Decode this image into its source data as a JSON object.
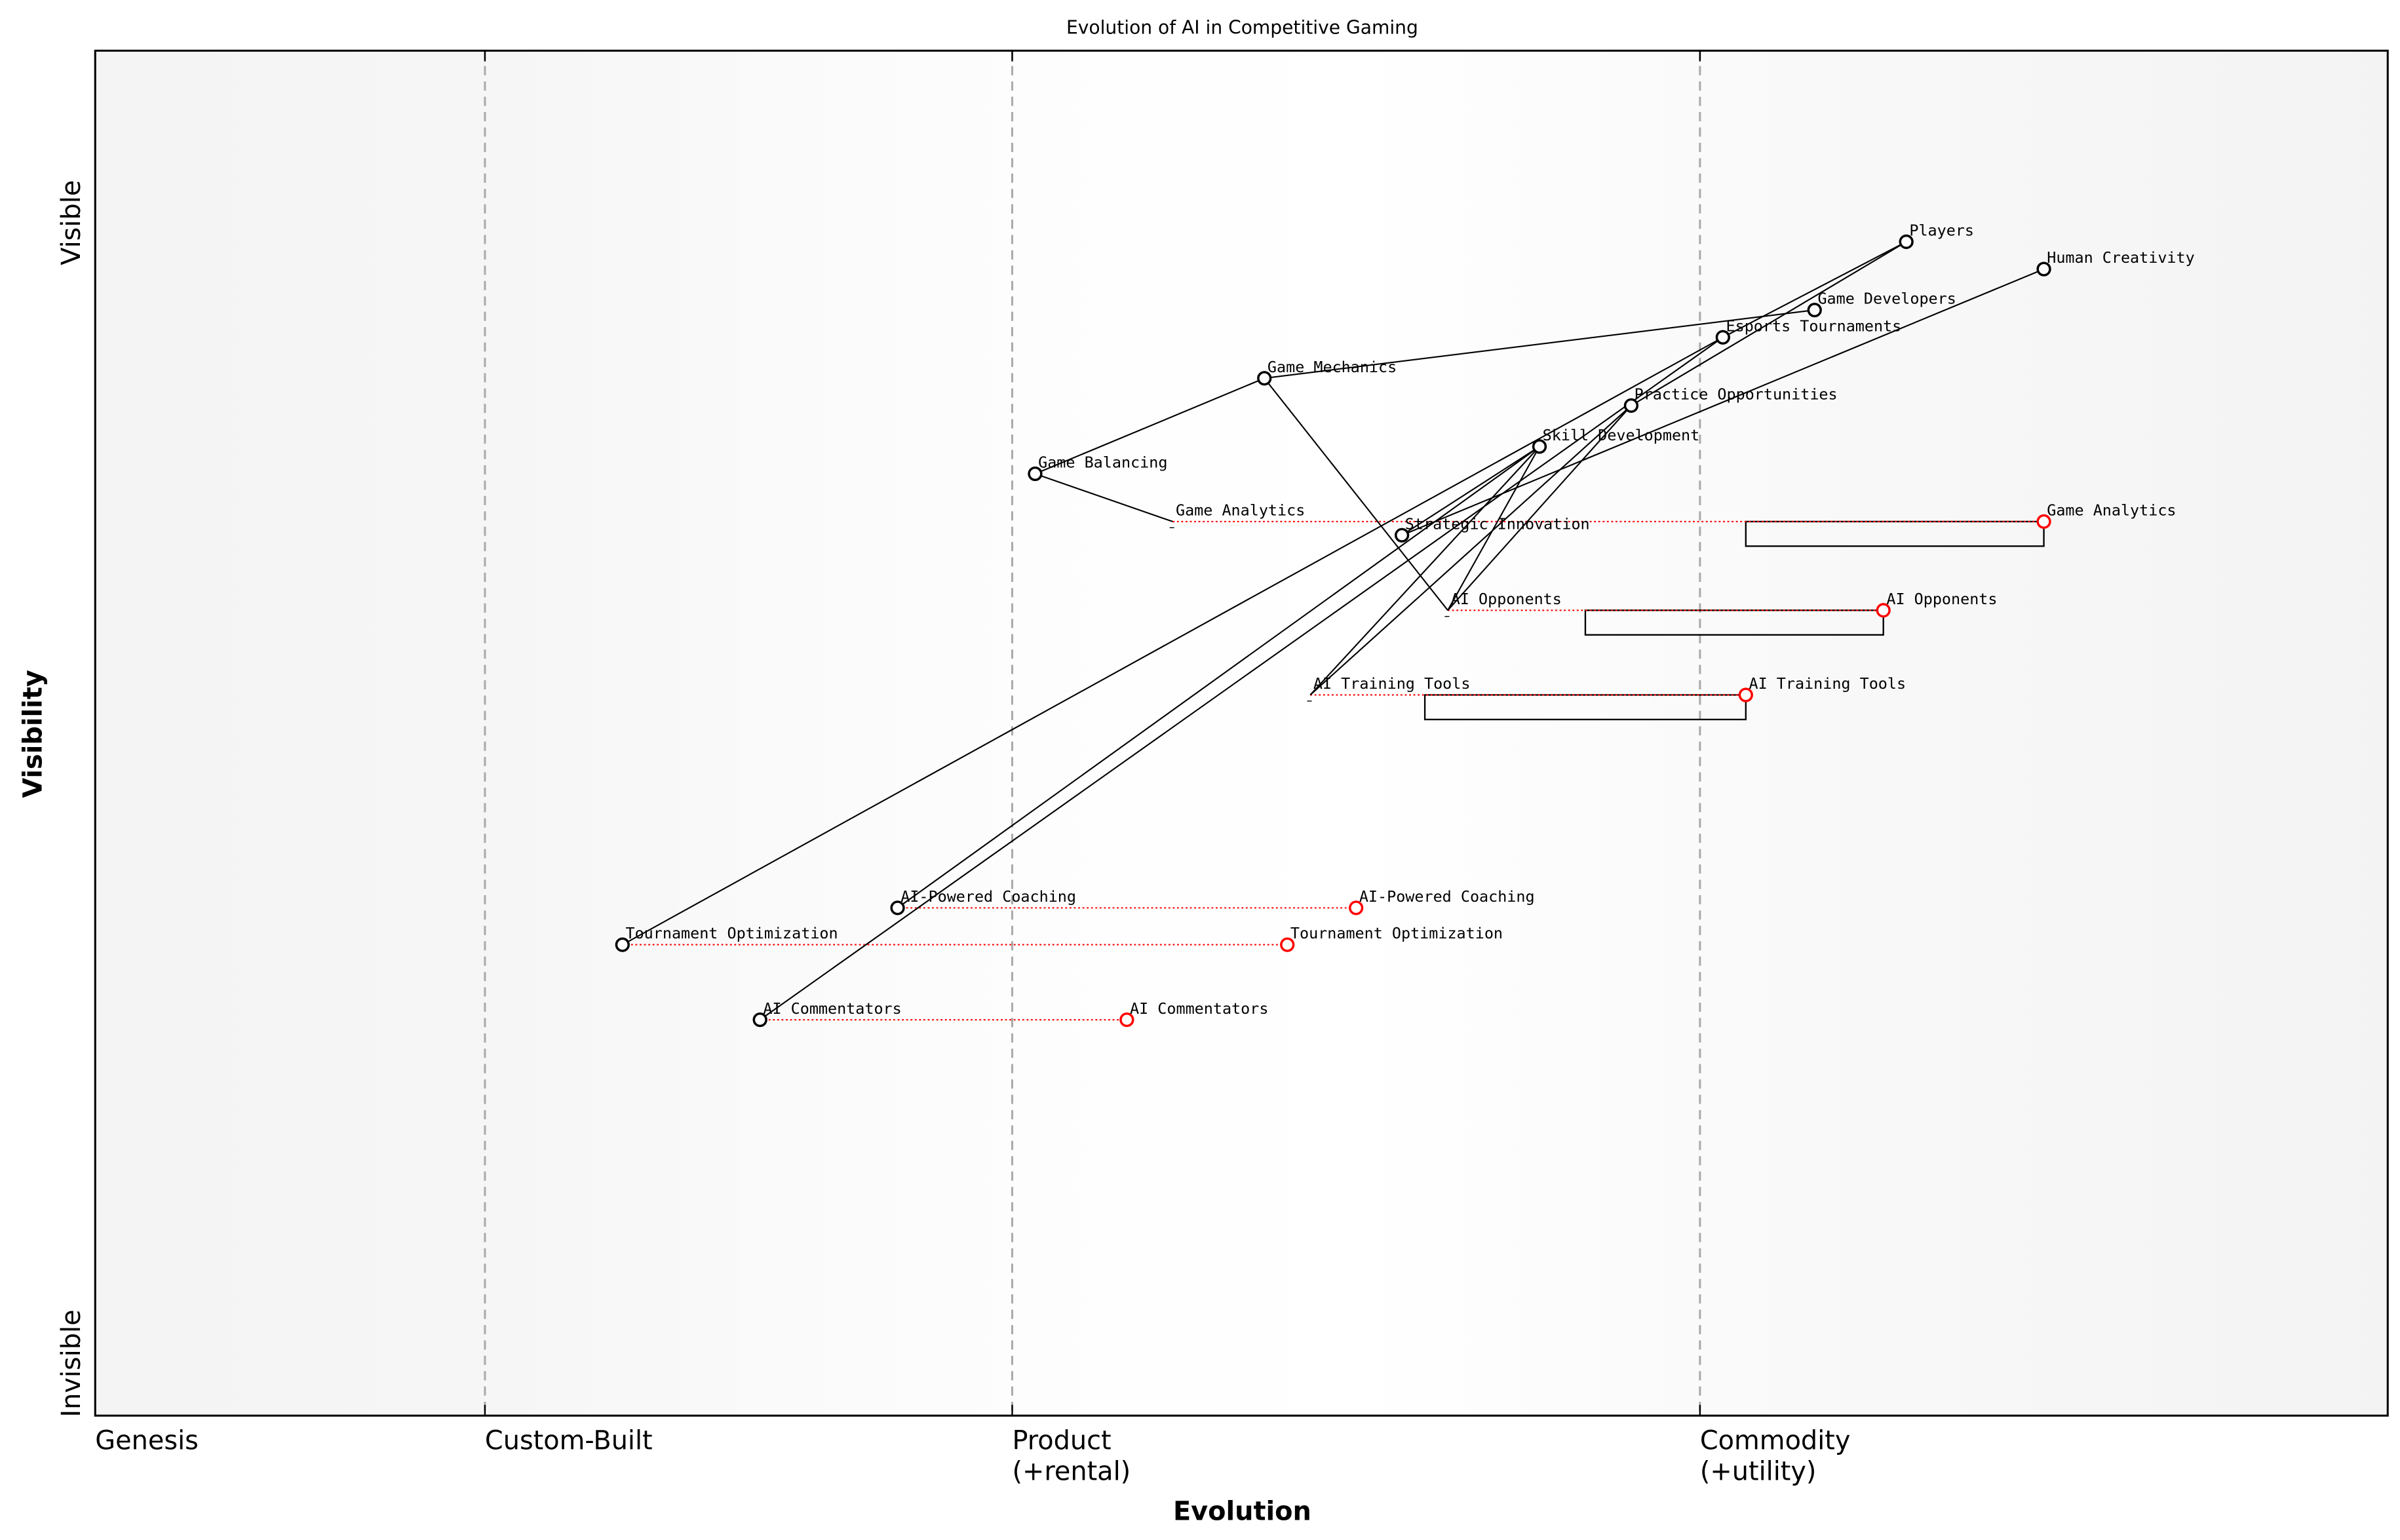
{
  "title": "Evolution of AI in Competitive Gaming",
  "x_axis": {
    "title": "Evolution",
    "stages": [
      {
        "label": "Genesis",
        "sub": "",
        "at": 0.0
      },
      {
        "label": "Custom-Built",
        "sub": "",
        "at": 0.17
      },
      {
        "label": "Product",
        "sub": "(+rental)",
        "at": 0.4
      },
      {
        "label": "Commodity",
        "sub": "(+utility)",
        "at": 0.7
      }
    ]
  },
  "y_axis": {
    "title": "Visibility",
    "top_label": "Visible",
    "bottom_label": "Invisible"
  },
  "colors": {
    "component": "#000000",
    "evolved": "#ff0000",
    "link": "#000000",
    "stage_divider": "#aaaaaa"
  },
  "components": [
    {
      "id": "players",
      "name": "Players",
      "evolution": 0.79,
      "visibility": 0.86
    },
    {
      "id": "human_creativity",
      "name": "Human Creativity",
      "evolution": 0.85,
      "visibility": 0.84
    },
    {
      "id": "game_developers",
      "name": "Game Developers",
      "evolution": 0.75,
      "visibility": 0.81
    },
    {
      "id": "esports",
      "name": "Esports Tournaments",
      "evolution": 0.71,
      "visibility": 0.79
    },
    {
      "id": "game_mechanics",
      "name": "Game Mechanics",
      "evolution": 0.51,
      "visibility": 0.76
    },
    {
      "id": "practice",
      "name": "Practice Opportunities",
      "evolution": 0.67,
      "visibility": 0.74
    },
    {
      "id": "skill_dev",
      "name": "Skill Development",
      "evolution": 0.63,
      "visibility": 0.71
    },
    {
      "id": "game_balancing",
      "name": "Game Balancing",
      "evolution": 0.41,
      "visibility": 0.69
    },
    {
      "id": "game_analytics",
      "name": "Game Analytics",
      "evolution": 0.47,
      "visibility": 0.655,
      "marker": "hidden",
      "evolves_to": 0.85,
      "inertia_from": 0.72
    },
    {
      "id": "strategic_innovation",
      "name": "Strategic Innovation",
      "evolution": 0.57,
      "visibility": 0.645
    },
    {
      "id": "ai_opponents",
      "name": "AI Opponents",
      "evolution": 0.59,
      "visibility": 0.59,
      "marker": "hidden",
      "evolves_to": 0.78,
      "inertia_from": 0.65
    },
    {
      "id": "ai_training_tools",
      "name": "AI Training Tools",
      "evolution": 0.53,
      "visibility": 0.528,
      "marker": "hidden",
      "evolves_to": 0.72,
      "inertia_from": 0.58
    },
    {
      "id": "ai_coaching",
      "name": "AI-Powered Coaching",
      "evolution": 0.35,
      "visibility": 0.372,
      "evolves_to": 0.55
    },
    {
      "id": "tournament_optimization",
      "name": "Tournament Optimization",
      "evolution": 0.23,
      "visibility": 0.345,
      "evolves_to": 0.52
    },
    {
      "id": "ai_commentators",
      "name": "AI Commentators",
      "evolution": 0.29,
      "visibility": 0.29,
      "evolves_to": 0.45
    }
  ],
  "links": [
    [
      "game_mechanics",
      "game_developers"
    ],
    [
      "game_mechanics",
      "game_balancing"
    ],
    [
      "game_balancing",
      "game_analytics"
    ],
    [
      "game_mechanics",
      "ai_opponents"
    ],
    [
      "players",
      "esports"
    ],
    [
      "esports",
      "tournament_optimization"
    ],
    [
      "esports",
      "ai_commentators"
    ],
    [
      "players",
      "practice"
    ],
    [
      "practice",
      "ai_training_tools"
    ],
    [
      "practice",
      "ai_opponents"
    ],
    [
      "skill_dev",
      "strategic_innovation"
    ],
    [
      "skill_dev",
      "ai_training_tools"
    ],
    [
      "skill_dev",
      "ai_opponents"
    ],
    [
      "skill_dev",
      "ai_coaching"
    ],
    [
      "human_creativity",
      "strategic_innovation"
    ]
  ]
}
